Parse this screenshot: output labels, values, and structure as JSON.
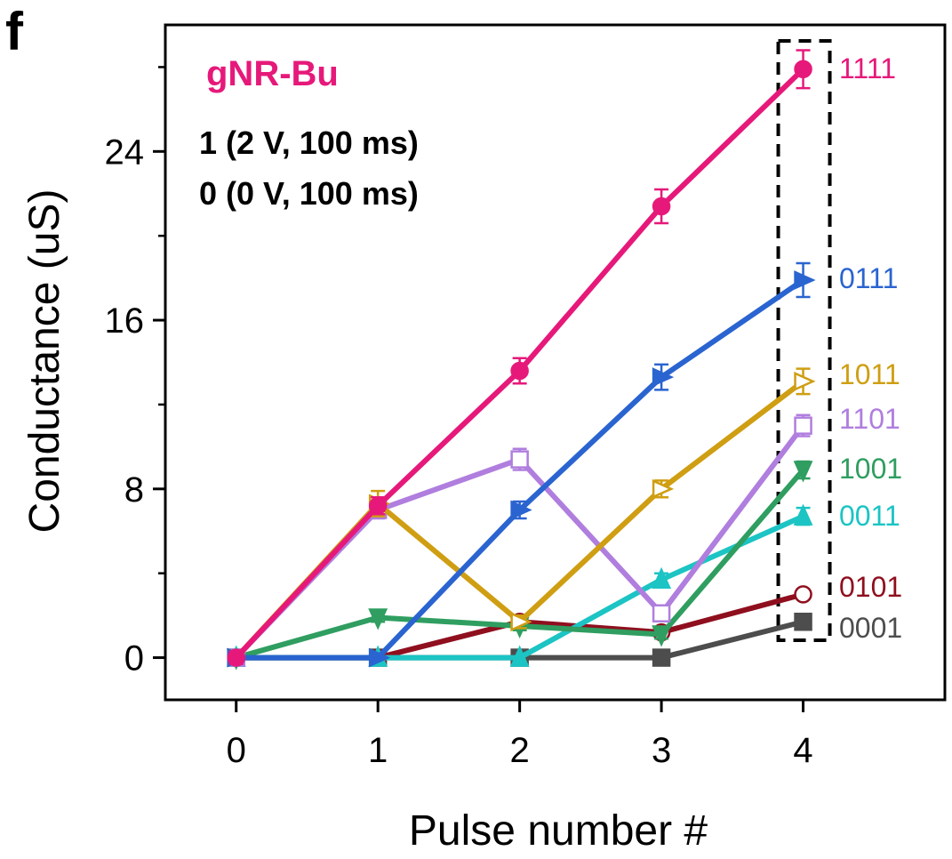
{
  "panel_letter": "f",
  "chart_data": {
    "type": "line",
    "xlabel": "Pulse number #",
    "ylabel": "Conductance (uS)",
    "x": [
      0,
      1,
      2,
      3,
      4
    ],
    "xlim": [
      -0.5,
      5
    ],
    "ylim": [
      -2,
      30
    ],
    "xticks": [
      "0",
      "1",
      "2",
      "3",
      "4"
    ],
    "yticks": [
      "0",
      "8",
      "16",
      "24"
    ],
    "grid": false,
    "legend": "none",
    "annotations": {
      "material": "gNR-Bu",
      "pulse_1": "1 (2 V, 100 ms)",
      "pulse_0": "0 (0 V, 100 ms)"
    },
    "highlight_box": {
      "x": 4,
      "style": "dashed"
    },
    "series": [
      {
        "label": "1111",
        "color": "#e6197a",
        "marker": "circle-filled",
        "values": [
          0,
          7.2,
          13.6,
          21.4,
          27.9
        ],
        "errors": [
          0.3,
          0.4,
          0.6,
          0.8,
          0.9
        ]
      },
      {
        "label": "0111",
        "color": "#2a64d0",
        "marker": "triangle-right-filled",
        "values": [
          0,
          0,
          7.0,
          13.3,
          17.9
        ],
        "errors": [
          0,
          0,
          0.4,
          0.6,
          0.8
        ]
      },
      {
        "label": "1011",
        "color": "#cf9e12",
        "marker": "triangle-right-open",
        "values": [
          0,
          7.3,
          1.7,
          8.0,
          13.1
        ],
        "errors": [
          0.2,
          0.6,
          0.3,
          0.4,
          0.6
        ]
      },
      {
        "label": "1101",
        "color": "#b07ede",
        "marker": "square-open",
        "values": [
          0,
          7.0,
          9.4,
          2.1,
          11.0
        ],
        "errors": [
          0.2,
          0.4,
          0.5,
          0.3,
          0.5
        ]
      },
      {
        "label": "1001",
        "color": "#2f9e60",
        "marker": "triangle-down-filled",
        "values": [
          0,
          1.9,
          1.5,
          1.1,
          8.9
        ],
        "errors": [
          0.1,
          0.2,
          0.2,
          0.2,
          0.4
        ]
      },
      {
        "label": "0011",
        "color": "#1cc4c4",
        "marker": "triangle-up-filled",
        "values": [
          0,
          0,
          0,
          3.7,
          6.7
        ],
        "errors": [
          0,
          0,
          0,
          0.3,
          0.4
        ]
      },
      {
        "label": "0101",
        "color": "#8f0f1e",
        "marker": "circle-open",
        "values": [
          0,
          0,
          1.7,
          1.2,
          3.0
        ],
        "errors": [
          0,
          0,
          0.2,
          0.2,
          0.2
        ]
      },
      {
        "label": "0001",
        "color": "#4d4d4d",
        "marker": "square-filled",
        "values": [
          0,
          0,
          0,
          0,
          1.7
        ],
        "errors": [
          0,
          0,
          0,
          0,
          0.1
        ]
      }
    ]
  }
}
